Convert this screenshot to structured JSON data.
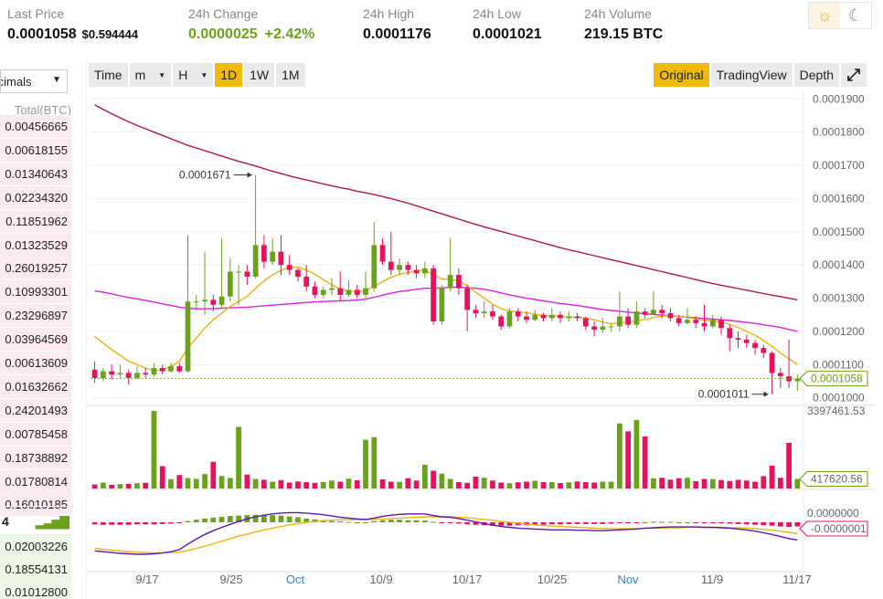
{
  "ticker": {
    "last_price_label": "Last Price",
    "last_price": "0.0001058",
    "last_price_usd": "$0.594444",
    "change_label": "24h Change",
    "change": "0.0000025",
    "change_pct": "+2.42%",
    "high_label": "24h High",
    "high": "0.0001176",
    "low_label": "24h Low",
    "low": "0.0001021",
    "volume_label": "24h Volume",
    "volume": "219.15 BTC",
    "up_color": "#6aa31a",
    "down_color": "#e8125c"
  },
  "theme": {
    "light_icon": "sun-icon",
    "dark_icon": "moon-icon",
    "active": "light"
  },
  "orderbook": {
    "decimals": "Decimals",
    "total_header": "Total(BTC)",
    "sell_totals": [
      "0.00456665",
      "0.00618155",
      "0.01340643",
      "0.02234320",
      "0.11851962",
      "0.01323529",
      "0.26019257",
      "0.10993301",
      "0.23296897",
      "0.03964569",
      "0.00613609",
      "0.01632662",
      "0.24201493",
      "0.00785458",
      "0.18738892",
      "0.01780814",
      "0.16010185"
    ],
    "mid_price": "4",
    "buy_totals": [
      "0.02003226",
      "0.18554131",
      "0.01012800"
    ]
  },
  "toolbar": {
    "time": "Time",
    "minutes": "m",
    "hours": "H",
    "day": "1D",
    "week": "1W",
    "month": "1M",
    "original": "Original",
    "tradingview": "TradingView",
    "depth": "Depth",
    "active": "1D",
    "fullscreen_icon": "fullscreen-icon"
  },
  "chart_data": {
    "type": "candlestick",
    "x_labels": [
      "9/17",
      "9/25",
      "Oct",
      "10/9",
      "10/17",
      "10/25",
      "Nov",
      "11/9",
      "11/17"
    ],
    "price_axis": [
      "0.0001900",
      "0.0001800",
      "0.0001700",
      "0.0001600",
      "0.0001500",
      "0.0001400",
      "0.0001300",
      "0.0001200",
      "0.0001100",
      "0.0001000"
    ],
    "price_ylim": [
      9.8e-05,
      0.000192
    ],
    "annotation_high": "0.0001671",
    "annotation_low": "0.0001011",
    "current_price_label": "0.0001058",
    "volume_max_label": "3397461.53",
    "volume_current_label": "417620.56",
    "macd_zero_label": "0.0000000",
    "macd_current_label": "-0.0000001",
    "candles": [
      [
        0.0001085,
        0.000106,
        0.000111,
        0.0001045
      ],
      [
        0.000106,
        0.000108,
        0.000109,
        0.000105
      ],
      [
        0.000108,
        0.000107,
        0.00011,
        0.0001055
      ],
      [
        0.000107,
        0.0001075,
        0.00011,
        0.000106
      ],
      [
        0.0001075,
        0.000106,
        0.0001085,
        0.000104
      ],
      [
        0.000106,
        0.0001075,
        0.0001095,
        0.0001055
      ],
      [
        0.0001075,
        0.000107,
        0.000109,
        0.000106
      ],
      [
        0.000107,
        0.000109,
        0.0001105,
        0.0001065
      ],
      [
        0.000109,
        0.000108,
        0.00011,
        0.000107
      ],
      [
        0.000108,
        0.0001095,
        0.0001105,
        0.0001075
      ],
      [
        0.0001095,
        0.000108,
        0.0001105,
        0.0001075
      ],
      [
        0.000108,
        0.000129,
        0.000149,
        0.0001075
      ],
      [
        0.000129,
        0.000129,
        0.000131,
        0.000127
      ],
      [
        0.000129,
        0.0001295,
        0.000144,
        0.000125
      ],
      [
        0.0001295,
        0.000128,
        0.000131,
        0.000126
      ],
      [
        0.000128,
        0.0001305,
        0.000148,
        0.000127
      ],
      [
        0.0001305,
        0.000138,
        0.000142,
        0.000129
      ],
      [
        0.000138,
        0.000138,
        0.00014,
        0.000128
      ],
      [
        0.000138,
        0.0001365,
        0.00014,
        0.000134
      ],
      [
        0.0001365,
        0.000146,
        0.0001671,
        0.000136
      ],
      [
        0.000146,
        0.000141,
        0.000149,
        0.000139
      ],
      [
        0.000141,
        0.000144,
        0.000148,
        0.00014
      ],
      [
        0.000144,
        0.00014,
        0.000149,
        0.000137
      ],
      [
        0.00014,
        0.0001385,
        0.000143,
        0.000137
      ],
      [
        0.0001385,
        0.0001365,
        0.000139,
        0.000135
      ],
      [
        0.0001365,
        0.0001335,
        0.00014,
        0.000132
      ],
      [
        0.0001335,
        0.000131,
        0.000135,
        0.00013
      ],
      [
        0.000131,
        0.0001325,
        0.0001335,
        0.00013
      ],
      [
        0.0001325,
        0.000133,
        0.000136,
        0.000131
      ],
      [
        0.000133,
        0.000131,
        0.000138,
        0.000129
      ],
      [
        0.000131,
        0.0001325,
        0.0001355,
        0.0001305
      ],
      [
        0.0001325,
        0.000131,
        0.000134,
        0.00013
      ],
      [
        0.000131,
        0.000133,
        0.000138,
        0.00013
      ],
      [
        0.000133,
        0.000146,
        0.000153,
        0.000132
      ],
      [
        0.000146,
        0.000141,
        0.000148,
        0.00014
      ],
      [
        0.000141,
        0.0001385,
        0.00015,
        0.000137
      ],
      [
        0.0001385,
        0.00014,
        0.000142,
        0.000137
      ],
      [
        0.00014,
        0.0001385,
        0.000141,
        0.000137
      ],
      [
        0.0001385,
        0.0001375,
        0.00014,
        0.000136
      ],
      [
        0.0001375,
        0.000139,
        0.000141,
        0.000136
      ],
      [
        0.000139,
        0.000123,
        0.00014,
        0.000122
      ],
      [
        0.000123,
        0.000133,
        0.000134,
        0.000122
      ],
      [
        0.000133,
        0.000137,
        0.000148,
        0.000132
      ],
      [
        0.000137,
        0.000133,
        0.000139,
        0.000131
      ],
      [
        0.000133,
        0.0001265,
        0.000134,
        0.00012
      ],
      [
        0.0001265,
        0.0001255,
        0.000128,
        0.000124
      ],
      [
        0.0001255,
        0.000126,
        0.000129,
        0.000124
      ],
      [
        0.000126,
        0.0001245,
        0.000128,
        0.0001235
      ],
      [
        0.0001245,
        0.0001215,
        0.000125,
        0.0001205
      ],
      [
        0.0001215,
        0.000126,
        0.000127,
        0.000121
      ],
      [
        0.000126,
        0.0001245,
        0.000127,
        0.000123
      ],
      [
        0.0001245,
        0.0001235,
        0.000126,
        0.0001225
      ],
      [
        0.0001235,
        0.000125,
        0.0001265,
        0.000123
      ],
      [
        0.000125,
        0.000124,
        0.0001255,
        0.000123
      ],
      [
        0.000124,
        0.000125,
        0.000127,
        0.000123
      ],
      [
        0.000125,
        0.000124,
        0.000126,
        0.0001225
      ],
      [
        0.000124,
        0.0001245,
        0.000126,
        0.000123
      ],
      [
        0.0001245,
        0.000124,
        0.0001255,
        0.000123
      ],
      [
        0.000124,
        0.0001215,
        0.0001245,
        0.0001205
      ],
      [
        0.0001215,
        0.0001205,
        0.000123,
        0.0001185
      ],
      [
        0.0001205,
        0.0001215,
        0.000124,
        0.0001195
      ],
      [
        0.0001215,
        0.0001215,
        0.0001225,
        0.00012
      ],
      [
        0.0001215,
        0.0001245,
        0.000132,
        0.00012
      ],
      [
        0.0001245,
        0.000122,
        0.000127,
        0.000121
      ],
      [
        0.000122,
        0.000126,
        0.000129,
        0.000121
      ],
      [
        0.000126,
        0.000125,
        0.000127,
        0.000124
      ],
      [
        0.000125,
        0.0001265,
        0.000132,
        0.000125
      ],
      [
        0.0001265,
        0.0001255,
        0.000128,
        0.000124
      ],
      [
        0.0001255,
        0.000124,
        0.000127,
        0.000123
      ],
      [
        0.000124,
        0.0001225,
        0.000125,
        0.0001215
      ],
      [
        0.0001225,
        0.0001235,
        0.000127,
        0.000122
      ],
      [
        0.0001235,
        0.0001225,
        0.0001245,
        0.000121
      ],
      [
        0.0001225,
        0.0001215,
        0.000128,
        0.00012
      ],
      [
        0.0001215,
        0.0001235,
        0.000125,
        0.000121
      ],
      [
        0.0001235,
        0.000121,
        0.0001245,
        0.000119
      ],
      [
        0.000121,
        0.000118,
        0.000122,
        0.000114
      ],
      [
        0.000118,
        0.0001175,
        0.00012,
        0.000115
      ],
      [
        0.0001175,
        0.0001165,
        0.000119,
        0.000115
      ],
      [
        0.0001165,
        0.000115,
        0.0001175,
        0.000113
      ],
      [
        0.000115,
        0.0001135,
        0.000116,
        0.000112
      ],
      [
        0.0001135,
        0.0001075,
        0.000114,
        0.0001011
      ],
      [
        0.0001075,
        0.0001065,
        0.000109,
        0.000103
      ],
      [
        0.0001065,
        0.000105,
        0.0001176,
        0.000103
      ],
      [
        0.000105,
        0.0001058,
        0.000107,
        0.0001021
      ]
    ],
    "volumes": [
      180000,
      260000,
      160000,
      190000,
      200000,
      230000,
      250000,
      3397461,
      980000,
      410000,
      590000,
      460000,
      420000,
      630000,
      1170000,
      550000,
      460000,
      2700000,
      610000,
      420000,
      380000,
      300000,
      370000,
      260000,
      310000,
      280000,
      250000,
      290000,
      350000,
      300000,
      430000,
      360000,
      2130000,
      2250000,
      400000,
      300000,
      290000,
      450000,
      350000,
      1040000,
      780000,
      650000,
      420000,
      280000,
      250000,
      520000,
      470000,
      350000,
      260000,
      230000,
      270000,
      300000,
      340000,
      280000,
      280000,
      240000,
      270000,
      310000,
      280000,
      260000,
      300000,
      300000,
      2850000,
      2500000,
      3000000,
      2280000,
      450000,
      470000,
      390000,
      450000,
      470000,
      320000,
      420000,
      410000,
      370000,
      330000,
      380000,
      350000,
      300000,
      540000,
      1000000,
      470000,
      2000000,
      417620
    ],
    "ma7": [
      0.0001185,
      0.0001165,
      0.0001145,
      0.0001128,
      0.000111,
      0.00011,
      0.000109,
      0.0001082,
      0.0001085,
      0.0001095,
      0.000111,
      0.000115,
      0.000118,
      0.000121,
      0.0001235,
      0.0001255,
      0.0001275,
      0.000129,
      0.0001305,
      0.000133,
      0.0001352,
      0.000137,
      0.0001384,
      0.0001392,
      0.0001393,
      0.0001385,
      0.0001372,
      0.0001356,
      0.000134,
      0.0001328,
      0.0001322,
      0.000132,
      0.0001322,
      0.0001336,
      0.000135,
      0.0001363,
      0.0001372,
      0.0001377,
      0.0001383,
      0.0001385,
      0.000137,
      0.0001358,
      0.0001357,
      0.0001352,
      0.0001338,
      0.0001318,
      0.00013,
      0.0001282,
      0.0001268,
      0.0001262,
      0.0001258,
      0.0001256,
      0.0001252,
      0.0001248,
      0.0001246,
      0.0001245,
      0.0001243,
      0.0001243,
      0.000124,
      0.0001235,
      0.0001228,
      0.0001223,
      0.0001226,
      0.0001228,
      0.0001232,
      0.0001236,
      0.0001242,
      0.0001246,
      0.0001248,
      0.0001245,
      0.0001242,
      0.0001238,
      0.0001234,
      0.000123,
      0.0001228,
      0.0001222,
      0.0001212,
      0.00012,
      0.0001188,
      0.0001172,
      0.0001155,
      0.0001135,
      0.0001118,
      0.00011
    ],
    "ma25": [
      0.0001322,
      0.0001318,
      0.0001313,
      0.0001307,
      0.0001302,
      0.0001298,
      0.0001293,
      0.0001288,
      0.0001283,
      0.0001278,
      0.0001273,
      0.000127,
      0.0001268,
      0.0001268,
      0.0001269,
      0.000127,
      0.0001271,
      0.0001272,
      0.0001273,
      0.0001275,
      0.0001277,
      0.0001279,
      0.0001281,
      0.0001283,
      0.0001285,
      0.0001287,
      0.0001289,
      0.000129,
      0.0001291,
      0.0001292,
      0.0001293,
      0.0001295,
      0.0001297,
      0.0001303,
      0.0001309,
      0.0001315,
      0.000132,
      0.0001323,
      0.0001327,
      0.000133,
      0.000133,
      0.0001331,
      0.0001333,
      0.0001333,
      0.0001332,
      0.000133,
      0.0001327,
      0.0001322,
      0.0001316,
      0.000131,
      0.0001305,
      0.00013,
      0.0001296,
      0.0001292,
      0.0001288,
      0.0001284,
      0.0001281,
      0.0001278,
      0.0001274,
      0.000127,
      0.0001266,
      0.0001263,
      0.0001261,
      0.0001258,
      0.0001256,
      0.0001253,
      0.0001251,
      0.0001249,
      0.0001247,
      0.0001245,
      0.0001243,
      0.0001241,
      0.0001239,
      0.0001237,
      0.0001235,
      0.0001233,
      0.000123,
      0.0001227,
      0.0001224,
      0.000122,
      0.0001216,
      0.0001212,
      0.0001206,
      0.00012
    ],
    "ma99": [
      0.0001882,
      0.0001868,
      0.0001855,
      0.0001843,
      0.0001831,
      0.000182,
      0.000181,
      0.00018,
      0.000179,
      0.000178,
      0.000177,
      0.000176,
      0.0001752,
      0.0001744,
      0.0001736,
      0.0001728,
      0.000172,
      0.0001712,
      0.0001705,
      0.0001698,
      0.000169,
      0.0001682,
      0.0001675,
      0.0001668,
      0.0001662,
      0.0001656,
      0.000165,
      0.0001644,
      0.0001638,
      0.0001633,
      0.0001628,
      0.0001622,
      0.0001617,
      0.0001612,
      0.0001606,
      0.00016,
      0.0001593,
      0.0001586,
      0.0001578,
      0.000157,
      0.0001562,
      0.0001554,
      0.0001546,
      0.0001538,
      0.000153,
      0.0001522,
      0.0001515,
      0.0001508,
      0.0001501,
      0.0001494,
      0.0001487,
      0.000148,
      0.0001473,
      0.0001466,
      0.0001459,
      0.0001452,
      0.0001446,
      0.000144,
      0.0001434,
      0.0001428,
      0.0001422,
      0.0001416,
      0.000141,
      0.0001404,
      0.0001398,
      0.0001392,
      0.0001386,
      0.000138,
      0.0001374,
      0.0001368,
      0.0001362,
      0.0001356,
      0.000135,
      0.0001344,
      0.0001339,
      0.0001334,
      0.0001329,
      0.0001324,
      0.0001319,
      0.0001314,
      0.0001309,
      0.0001305,
      0.00013,
      0.0001295
    ],
    "macd_hist": [
      -0.5,
      -0.6,
      -0.6,
      -0.6,
      -0.6,
      -0.5,
      -0.5,
      -0.5,
      -0.4,
      -0.3,
      -0.2,
      0.3,
      0.6,
      0.9,
      1.1,
      1.3,
      1.5,
      1.6,
      1.7,
      1.8,
      1.8,
      1.7,
      1.6,
      1.4,
      1.2,
      0.9,
      0.7,
      0.5,
      0.3,
      0.2,
      0.1,
      0.0,
      0.0,
      0.3,
      0.5,
      0.6,
      0.6,
      0.5,
      0.5,
      0.4,
      0.1,
      -0.1,
      -0.1,
      -0.3,
      -0.5,
      -0.6,
      -0.7,
      -0.8,
      -0.8,
      -0.8,
      -0.7,
      -0.7,
      -0.6,
      -0.6,
      -0.5,
      -0.5,
      -0.4,
      -0.4,
      -0.4,
      -0.4,
      -0.4,
      -0.3,
      -0.2,
      -0.2,
      -0.1,
      0.0,
      0.1,
      0.1,
      0.1,
      0.0,
      0.0,
      -0.1,
      -0.1,
      -0.2,
      -0.2,
      -0.3,
      -0.4,
      -0.5,
      -0.6,
      -0.7,
      -0.8,
      -1.0,
      -1.1,
      -1.0
    ],
    "macd_line": [
      -6.8,
      -7.0,
      -7.2,
      -7.4,
      -7.5,
      -7.6,
      -7.6,
      -7.5,
      -7.3,
      -7.0,
      -6.5,
      -5.2,
      -4.0,
      -2.9,
      -2.0,
      -1.2,
      -0.5,
      0.2,
      0.8,
      1.3,
      1.7,
      2.0,
      2.2,
      2.3,
      2.3,
      2.2,
      2.0,
      1.8,
      1.5,
      1.2,
      1.0,
      0.8,
      0.7,
      1.0,
      1.4,
      1.7,
      1.9,
      2.0,
      2.0,
      2.0,
      1.6,
      1.3,
      1.2,
      0.9,
      0.5,
      0.1,
      -0.3,
      -0.7,
      -1.0,
      -1.2,
      -1.4,
      -1.5,
      -1.6,
      -1.7,
      -1.8,
      -1.8,
      -1.8,
      -1.9,
      -1.9,
      -2.0,
      -2.0,
      -1.9,
      -1.8,
      -1.7,
      -1.6,
      -1.4,
      -1.3,
      -1.2,
      -1.1,
      -1.1,
      -1.1,
      -1.1,
      -1.2,
      -1.2,
      -1.3,
      -1.4,
      -1.6,
      -1.8,
      -2.1,
      -2.5,
      -2.9,
      -3.4,
      -3.9,
      -4.2
    ],
    "signal_line": [
      -6.2,
      -6.4,
      -6.6,
      -6.8,
      -7.0,
      -7.1,
      -7.2,
      -7.3,
      -7.3,
      -7.2,
      -7.1,
      -6.7,
      -6.2,
      -5.7,
      -5.1,
      -4.5,
      -3.9,
      -3.3,
      -2.8,
      -2.3,
      -1.8,
      -1.4,
      -1.0,
      -0.6,
      -0.3,
      0.0,
      0.2,
      0.4,
      0.5,
      0.6,
      0.6,
      0.6,
      0.6,
      0.7,
      0.8,
      0.9,
      1.0,
      1.1,
      1.2,
      1.3,
      1.3,
      1.3,
      1.3,
      1.2,
      1.1,
      0.9,
      0.7,
      0.5,
      0.2,
      -0.0,
      -0.2,
      -0.4,
      -0.6,
      -0.8,
      -0.9,
      -1.0,
      -1.1,
      -1.2,
      -1.3,
      -1.4,
      -1.5,
      -1.5,
      -1.5,
      -1.5,
      -1.5,
      -1.4,
      -1.4,
      -1.3,
      -1.3,
      -1.3,
      -1.2,
      -1.2,
      -1.2,
      -1.2,
      -1.2,
      -1.3,
      -1.3,
      -1.4,
      -1.5,
      -1.7,
      -1.9,
      -2.1,
      -2.4,
      -2.7
    ],
    "colors": {
      "up": "#6aa31a",
      "down": "#e8125c",
      "ma7": "#f0b20f",
      "ma25": "#e020e0",
      "ma99": "#b5105a",
      "macd": "#5a1ab0",
      "signal": "#f0b20f",
      "axis_text": "#666",
      "date_blue": "#2f86c8"
    }
  }
}
